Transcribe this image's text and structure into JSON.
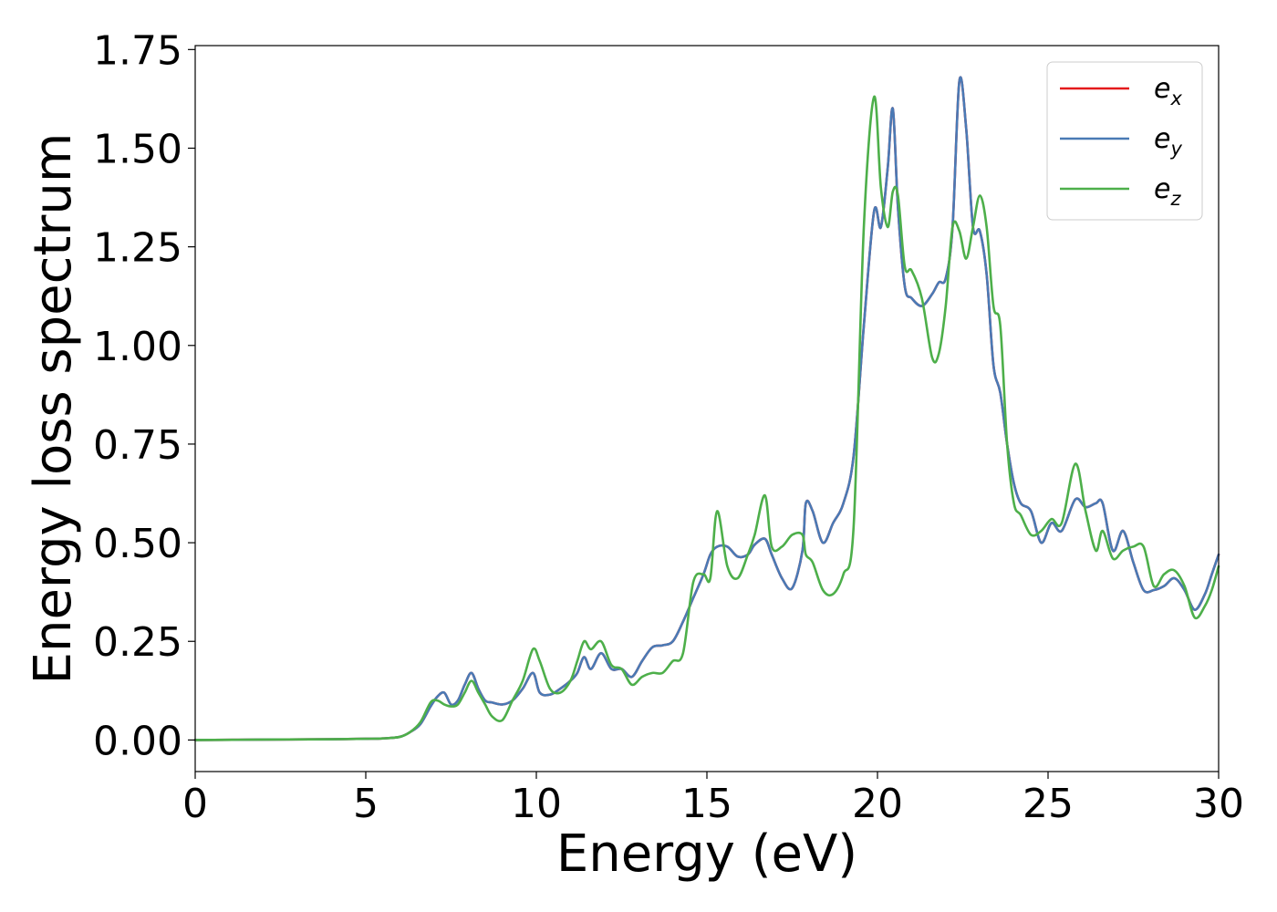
{
  "chart_data": {
    "type": "line",
    "title": "",
    "xlabel": "Energy (eV)",
    "ylabel": "Energy loss spectrum",
    "xlim": [
      0,
      30
    ],
    "ylim": [
      -0.08,
      1.76
    ],
    "x_ticks": [
      {
        "value": 0,
        "label": "0"
      },
      {
        "value": 5,
        "label": "5"
      },
      {
        "value": 10,
        "label": "10"
      },
      {
        "value": 15,
        "label": "15"
      },
      {
        "value": 20,
        "label": "20"
      },
      {
        "value": 25,
        "label": "25"
      },
      {
        "value": 30,
        "label": "30"
      }
    ],
    "y_ticks": [
      {
        "value": 0.0,
        "label": "0.00"
      },
      {
        "value": 0.25,
        "label": "0.25"
      },
      {
        "value": 0.5,
        "label": "0.50"
      },
      {
        "value": 0.75,
        "label": "0.75"
      },
      {
        "value": 1.0,
        "label": "1.00"
      },
      {
        "value": 1.25,
        "label": "1.25"
      },
      {
        "value": 1.5,
        "label": "1.50"
      },
      {
        "value": 1.75,
        "label": "1.75"
      }
    ],
    "grid": false,
    "legend_position": "top-right",
    "series": [
      {
        "name": "e",
        "subscript": "x",
        "color": "#e41a1c",
        "x": [
          0,
          2,
          4,
          5,
          5.5,
          6,
          6.3,
          6.6,
          6.9,
          7.1,
          7.3,
          7.5,
          7.7,
          7.9,
          8.1,
          8.3,
          8.5,
          8.7,
          9,
          9.3,
          9.6,
          9.9,
          10.1,
          10.4,
          10.7,
          11,
          11.2,
          11.4,
          11.6,
          11.9,
          12.2,
          12.5,
          12.8,
          13.1,
          13.4,
          13.7,
          14,
          14.3,
          14.6,
          14.9,
          15.1,
          15.3,
          15.6,
          15.9,
          16.2,
          16.4,
          16.7,
          16.9,
          17.2,
          17.5,
          17.8,
          17.9,
          18.1,
          18.4,
          18.7,
          19,
          19.3,
          19.6,
          19.9,
          20.1,
          20.3,
          20.45,
          20.6,
          20.8,
          21,
          21.3,
          21.6,
          21.8,
          22,
          22.2,
          22.4,
          22.6,
          22.8,
          23,
          23.2,
          23.4,
          23.6,
          23.8,
          24,
          24.2,
          24.5,
          24.8,
          25.1,
          25.4,
          25.8,
          26.1,
          26.4,
          26.6,
          26.9,
          27.2,
          27.5,
          27.8,
          28.1,
          28.4,
          28.7,
          29,
          29.3,
          29.6,
          29.8,
          30
        ],
        "y": [
          0,
          0.001,
          0.002,
          0.003,
          0.004,
          0.008,
          0.02,
          0.04,
          0.085,
          0.11,
          0.12,
          0.09,
          0.1,
          0.14,
          0.17,
          0.13,
          0.1,
          0.095,
          0.09,
          0.1,
          0.13,
          0.17,
          0.12,
          0.115,
          0.13,
          0.15,
          0.17,
          0.21,
          0.18,
          0.22,
          0.18,
          0.18,
          0.16,
          0.2,
          0.235,
          0.24,
          0.25,
          0.3,
          0.36,
          0.42,
          0.47,
          0.49,
          0.49,
          0.465,
          0.47,
          0.495,
          0.51,
          0.47,
          0.41,
          0.385,
          0.48,
          0.6,
          0.58,
          0.5,
          0.55,
          0.6,
          0.72,
          1.05,
          1.34,
          1.3,
          1.45,
          1.6,
          1.35,
          1.15,
          1.12,
          1.1,
          1.13,
          1.16,
          1.17,
          1.3,
          1.67,
          1.55,
          1.3,
          1.29,
          1.18,
          0.95,
          0.88,
          0.75,
          0.65,
          0.6,
          0.58,
          0.5,
          0.55,
          0.53,
          0.61,
          0.59,
          0.6,
          0.6,
          0.48,
          0.53,
          0.45,
          0.38,
          0.38,
          0.39,
          0.41,
          0.38,
          0.33,
          0.37,
          0.42,
          0.47
        ]
      },
      {
        "name": "e",
        "subscript": "y",
        "color": "#4a7ab5",
        "x": [
          0,
          2,
          4,
          5,
          5.5,
          6,
          6.3,
          6.6,
          6.9,
          7.1,
          7.3,
          7.5,
          7.7,
          7.9,
          8.1,
          8.3,
          8.5,
          8.7,
          9,
          9.3,
          9.6,
          9.9,
          10.1,
          10.4,
          10.7,
          11,
          11.2,
          11.4,
          11.6,
          11.9,
          12.2,
          12.5,
          12.8,
          13.1,
          13.4,
          13.7,
          14,
          14.3,
          14.6,
          14.9,
          15.1,
          15.3,
          15.6,
          15.9,
          16.2,
          16.4,
          16.7,
          16.9,
          17.2,
          17.5,
          17.8,
          17.9,
          18.1,
          18.4,
          18.7,
          19,
          19.3,
          19.6,
          19.9,
          20.1,
          20.3,
          20.45,
          20.6,
          20.8,
          21,
          21.3,
          21.6,
          21.8,
          22,
          22.2,
          22.4,
          22.6,
          22.8,
          23,
          23.2,
          23.4,
          23.6,
          23.8,
          24,
          24.2,
          24.5,
          24.8,
          25.1,
          25.4,
          25.8,
          26.1,
          26.4,
          26.6,
          26.9,
          27.2,
          27.5,
          27.8,
          28.1,
          28.4,
          28.7,
          29,
          29.3,
          29.6,
          29.8,
          30
        ],
        "y": [
          0,
          0.001,
          0.002,
          0.003,
          0.004,
          0.008,
          0.02,
          0.04,
          0.085,
          0.11,
          0.12,
          0.09,
          0.1,
          0.14,
          0.17,
          0.13,
          0.1,
          0.095,
          0.09,
          0.1,
          0.13,
          0.17,
          0.12,
          0.115,
          0.13,
          0.15,
          0.17,
          0.21,
          0.18,
          0.22,
          0.18,
          0.18,
          0.16,
          0.2,
          0.235,
          0.24,
          0.25,
          0.3,
          0.36,
          0.42,
          0.47,
          0.49,
          0.49,
          0.465,
          0.47,
          0.495,
          0.51,
          0.47,
          0.41,
          0.385,
          0.48,
          0.6,
          0.58,
          0.5,
          0.55,
          0.6,
          0.72,
          1.05,
          1.34,
          1.3,
          1.45,
          1.6,
          1.35,
          1.15,
          1.12,
          1.1,
          1.13,
          1.16,
          1.17,
          1.3,
          1.67,
          1.55,
          1.3,
          1.29,
          1.18,
          0.95,
          0.88,
          0.75,
          0.65,
          0.6,
          0.58,
          0.5,
          0.55,
          0.53,
          0.61,
          0.59,
          0.6,
          0.6,
          0.48,
          0.53,
          0.45,
          0.38,
          0.38,
          0.39,
          0.41,
          0.38,
          0.33,
          0.37,
          0.42,
          0.47
        ]
      },
      {
        "name": "e",
        "subscript": "z",
        "color": "#4daf4a",
        "x": [
          0,
          2,
          4,
          5,
          5.5,
          6,
          6.3,
          6.6,
          6.9,
          7.1,
          7.3,
          7.5,
          7.7,
          7.9,
          8.1,
          8.3,
          8.5,
          8.7,
          9,
          9.3,
          9.6,
          9.9,
          10.1,
          10.4,
          10.7,
          11,
          11.2,
          11.4,
          11.6,
          11.9,
          12.2,
          12.5,
          12.8,
          13.1,
          13.4,
          13.7,
          14,
          14.3,
          14.6,
          14.9,
          15.1,
          15.3,
          15.6,
          15.9,
          16.2,
          16.4,
          16.7,
          16.9,
          17.2,
          17.5,
          17.8,
          17.9,
          18.1,
          18.4,
          18.7,
          19,
          19.3,
          19.6,
          19.9,
          20.1,
          20.3,
          20.45,
          20.6,
          20.8,
          21,
          21.3,
          21.6,
          21.8,
          22,
          22.2,
          22.4,
          22.6,
          22.8,
          23,
          23.2,
          23.4,
          23.6,
          23.8,
          24,
          24.2,
          24.5,
          24.8,
          25.1,
          25.4,
          25.8,
          26.1,
          26.4,
          26.6,
          26.9,
          27.2,
          27.5,
          27.8,
          28.1,
          28.4,
          28.7,
          29,
          29.3,
          29.6,
          29.8,
          30
        ],
        "y": [
          0,
          0.001,
          0.002,
          0.003,
          0.004,
          0.008,
          0.02,
          0.045,
          0.095,
          0.1,
          0.09,
          0.085,
          0.09,
          0.12,
          0.15,
          0.12,
          0.09,
          0.06,
          0.05,
          0.1,
          0.15,
          0.23,
          0.2,
          0.13,
          0.12,
          0.15,
          0.2,
          0.25,
          0.23,
          0.25,
          0.19,
          0.18,
          0.14,
          0.16,
          0.17,
          0.17,
          0.2,
          0.22,
          0.4,
          0.42,
          0.41,
          0.58,
          0.44,
          0.41,
          0.47,
          0.52,
          0.62,
          0.49,
          0.49,
          0.52,
          0.52,
          0.47,
          0.45,
          0.38,
          0.37,
          0.42,
          0.54,
          1.3,
          1.63,
          1.4,
          1.3,
          1.39,
          1.38,
          1.2,
          1.19,
          1.12,
          0.97,
          0.98,
          1.1,
          1.3,
          1.29,
          1.22,
          1.3,
          1.38,
          1.3,
          1.1,
          1.05,
          0.75,
          0.6,
          0.57,
          0.52,
          0.53,
          0.56,
          0.55,
          0.7,
          0.58,
          0.48,
          0.53,
          0.46,
          0.48,
          0.49,
          0.49,
          0.39,
          0.42,
          0.43,
          0.39,
          0.31,
          0.34,
          0.38,
          0.44
        ]
      }
    ]
  }
}
